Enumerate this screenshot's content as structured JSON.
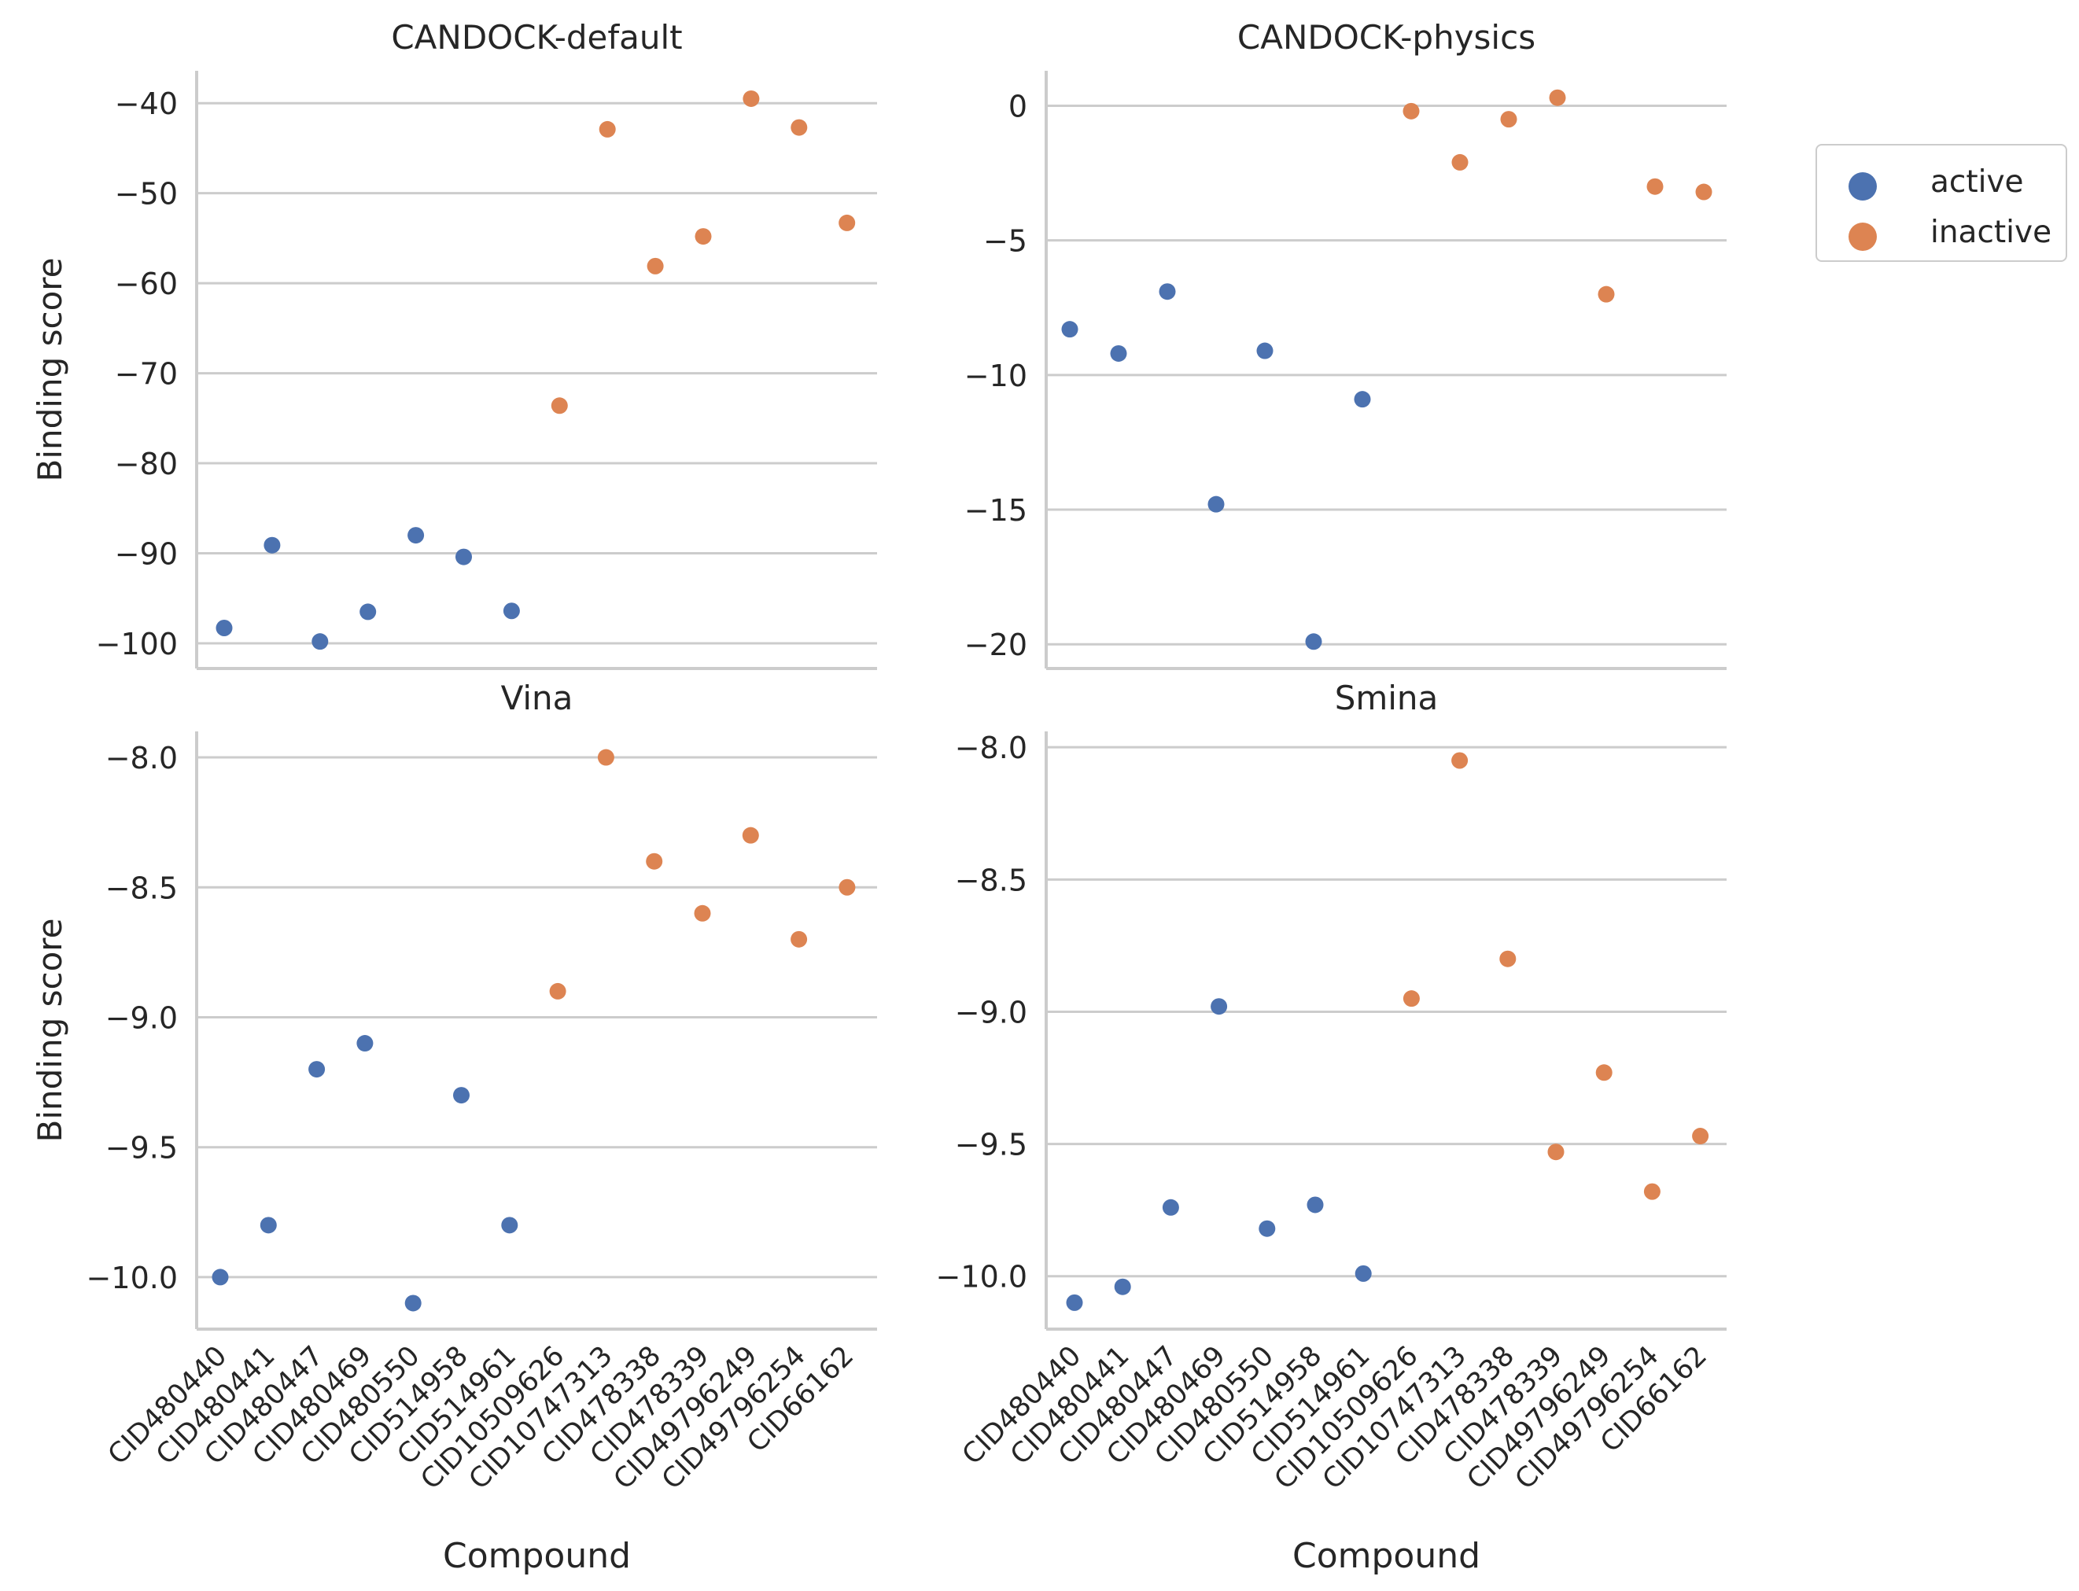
{
  "chart_data": {
    "type": "scatter",
    "categories": [
      "CID480440",
      "CID480441",
      "CID480447",
      "CID480469",
      "CID480550",
      "CID514958",
      "CID514961",
      "CID10509626",
      "CID10747313",
      "CID478338",
      "CID478339",
      "CID49796249",
      "CID49796254",
      "CID66162"
    ],
    "status": [
      "active",
      "active",
      "active",
      "active",
      "active",
      "active",
      "active",
      "inactive",
      "inactive",
      "inactive",
      "inactive",
      "inactive",
      "inactive",
      "inactive"
    ],
    "legend": {
      "placement": "right",
      "entries": [
        {
          "name": "active",
          "color": "#4c72b0"
        },
        {
          "name": "inactive",
          "color": "#dd8452"
        }
      ]
    },
    "grid": "horizontal",
    "panels": [
      {
        "title": "CANDOCK-default",
        "ylabel": "Binding score",
        "xlabel": "",
        "ylim": [
          -102.8,
          -36.4
        ],
        "yticks": [
          -40,
          -50,
          -60,
          -70,
          -80,
          -90,
          -100
        ],
        "ytick_labels": [
          "−40",
          "−50",
          "−60",
          "−70",
          "−80",
          "−90",
          "−100"
        ],
        "values": [
          -98.3,
          -89.1,
          -99.8,
          -96.5,
          -88.0,
          -90.4,
          -96.4,
          -73.6,
          -42.9,
          -58.1,
          -54.8,
          -39.5,
          -42.7,
          -53.3
        ]
      },
      {
        "title": "CANDOCK-physics",
        "ylabel": "",
        "xlabel": "",
        "ylim": [
          -20.9,
          1.3
        ],
        "yticks": [
          0,
          -5,
          -10,
          -15,
          -20
        ],
        "ytick_labels": [
          "0",
          "−5",
          "−10",
          "−15",
          "−20"
        ],
        "values": [
          -8.3,
          -9.2,
          -6.9,
          -14.8,
          -9.1,
          -19.9,
          -10.9,
          -0.2,
          -2.1,
          -0.5,
          0.3,
          -7.0,
          -3.0,
          -3.2
        ]
      },
      {
        "title": "Vina",
        "ylabel": "Binding score",
        "xlabel": "Compound",
        "ylim": [
          -10.2,
          -7.9
        ],
        "yticks": [
          -8.0,
          -8.5,
          -9.0,
          -9.5,
          -10.0
        ],
        "ytick_labels": [
          "−8.0",
          "−8.5",
          "−9.0",
          "−9.5",
          "−10.0"
        ],
        "values": [
          -10.0,
          -9.8,
          -9.2,
          -9.1,
          -10.1,
          -9.3,
          -9.8,
          -8.9,
          -8.0,
          -8.4,
          -8.6,
          -8.3,
          -8.7,
          -8.5
        ]
      },
      {
        "title": "Smina",
        "ylabel": "",
        "xlabel": "Compound",
        "ylim": [
          -10.2,
          -7.94
        ],
        "yticks": [
          -8.0,
          -8.5,
          -9.0,
          -9.5,
          -10.0
        ],
        "ytick_labels": [
          "−8.0",
          "−8.5",
          "−9.0",
          "−9.5",
          "−10.0"
        ],
        "values": [
          -10.1,
          -10.04,
          -9.74,
          -8.98,
          -9.82,
          -9.73,
          -9.99,
          -8.95,
          -8.05,
          -8.8,
          -9.53,
          -9.23,
          -9.68,
          -9.47
        ]
      }
    ]
  }
}
